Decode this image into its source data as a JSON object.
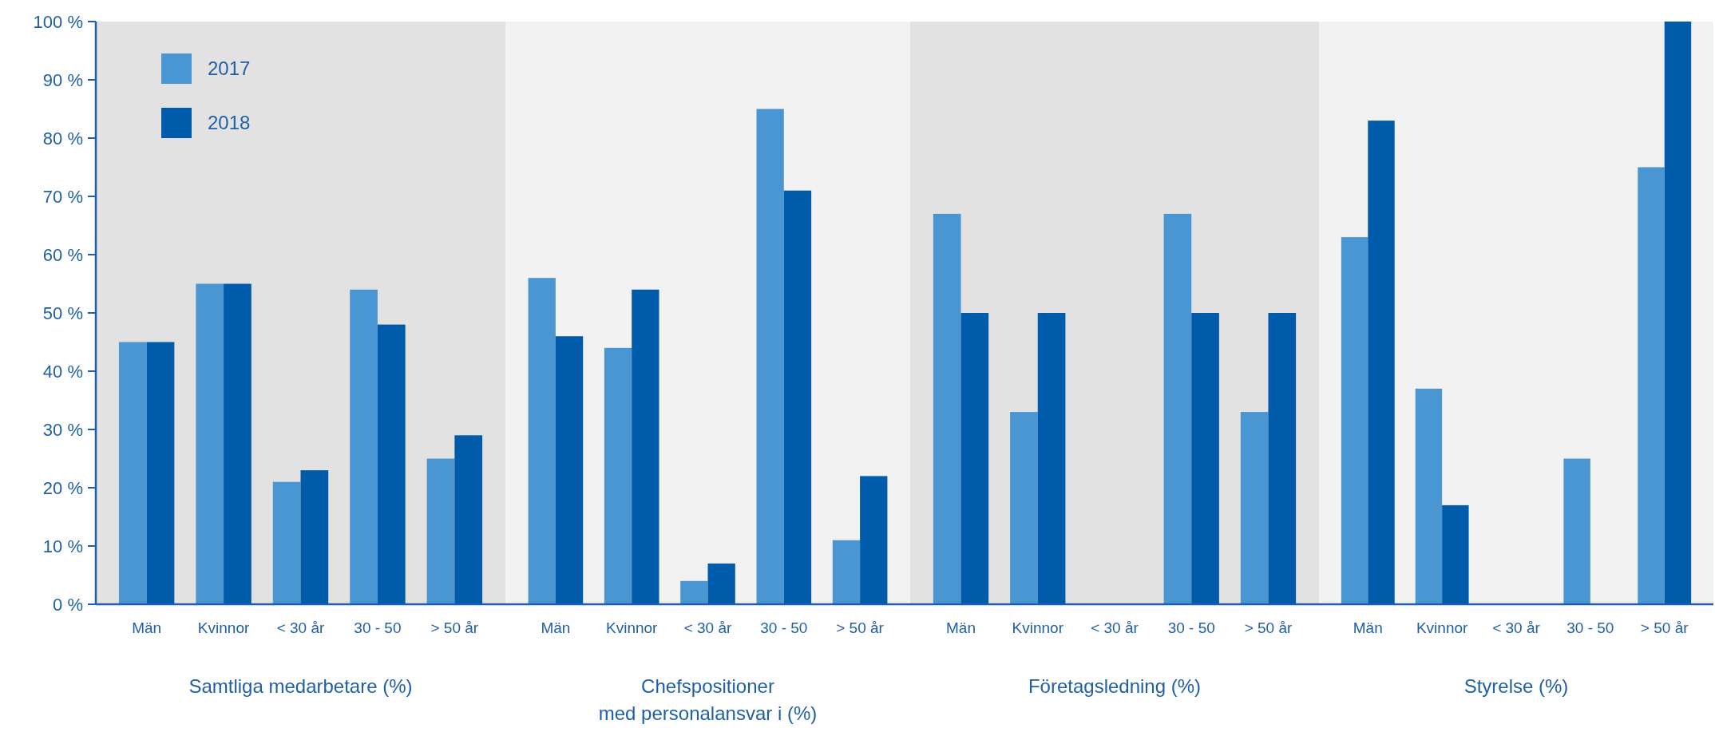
{
  "chart_data": [
    {
      "type": "bar",
      "xlabel": "Samtliga medarbetare (%)",
      "categories": [
        "Män",
        "Kvinnor",
        "< 30 år",
        "30 - 50",
        "> 50 år"
      ],
      "legend": "top left",
      "series": [
        {
          "name": "2017",
          "color": "#4a96d2",
          "values": [
            45,
            55,
            21,
            54,
            25
          ]
        },
        {
          "name": "2018",
          "color": "#005baa",
          "values": [
            45,
            55,
            23,
            48,
            29
          ]
        }
      ],
      "ylim": [
        0,
        100
      ],
      "yticks": [
        {
          "value": 0,
          "label": "0 %"
        },
        {
          "value": 10,
          "label": "10 %"
        },
        {
          "value": 20,
          "label": "20 %"
        },
        {
          "value": 30,
          "label": "30 %"
        },
        {
          "value": 40,
          "label": "40 %"
        },
        {
          "value": 50,
          "label": "50 %"
        },
        {
          "value": 60,
          "label": "60 %"
        },
        {
          "value": 70,
          "label": "70 %"
        },
        {
          "value": 80,
          "label": "80 %"
        },
        {
          "value": 90,
          "label": "90 %"
        },
        {
          "value": 100,
          "label": "100 %"
        }
      ]
    },
    {
      "type": "bar",
      "xlabel": "Chefspositioner\nmed personalansvar i (%)",
      "categories": [
        "Män",
        "Kvinnor",
        "< 30 år",
        "30 - 50",
        "> 50 år"
      ],
      "series": [
        {
          "color": "#4a96d2",
          "values": [
            56,
            44,
            4,
            85,
            11
          ]
        },
        {
          "color": "#005baa",
          "values": [
            46,
            54,
            7,
            71,
            22
          ]
        }
      ],
      "ylim": [
        0,
        100
      ],
      "tick_labels": "x"
    },
    {
      "type": "bar",
      "xlabel": "Företagsledning (%)",
      "categories": [
        "Män",
        "Kvinnor",
        "< 30 år",
        "30 - 50",
        "> 50 år"
      ],
      "series": [
        {
          "color": "#4a96d2",
          "values": [
            67,
            33,
            0,
            67,
            33
          ]
        },
        {
          "color": "#005baa",
          "values": [
            50,
            50,
            0,
            50,
            50
          ]
        }
      ],
      "ylim": [
        0,
        100
      ],
      "tick_labels": "x"
    },
    {
      "type": "bar",
      "xlabel": "Styrelse (%)",
      "categories": [
        "Män",
        "Kvinnor",
        "< 30 år",
        "30 - 50",
        "> 50 år"
      ],
      "series": [
        {
          "color": "#4a96d2",
          "values": [
            63,
            37,
            0,
            25,
            75
          ]
        },
        {
          "color": "#005baa",
          "values": [
            83,
            17,
            0,
            0,
            100
          ]
        }
      ],
      "ylim": [
        0,
        100
      ],
      "tick_labels": "x"
    }
  ]
}
